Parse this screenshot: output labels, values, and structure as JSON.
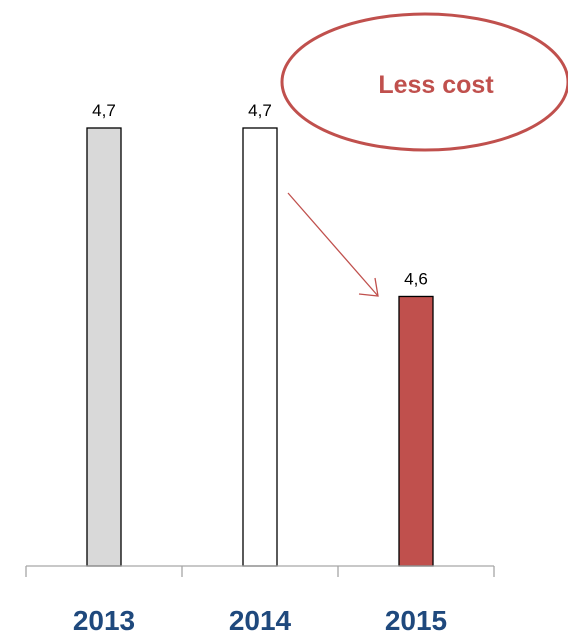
{
  "chart_data": {
    "type": "bar",
    "categories": [
      "2013",
      "2014",
      "2015"
    ],
    "values": [
      4.7,
      4.7,
      4.6
    ],
    "value_labels": [
      "4,7",
      "4,7",
      "4,6"
    ],
    "bar_colors": [
      "#d9d9d9",
      "#ffffff",
      "#c0504d"
    ],
    "bar_outline_color": "#000000",
    "category_label_color": "#1f497d",
    "axis_color": "#a6a6a6",
    "baseline": 4.44,
    "title": "",
    "xlabel": "",
    "ylabel": "",
    "grid": false,
    "legend": "none",
    "annotation": {
      "text": "Less cost",
      "shape": "ellipse",
      "color": "#c0504d",
      "arrow_color": "#c0504d",
      "arrow_direction": "down-right"
    }
  }
}
